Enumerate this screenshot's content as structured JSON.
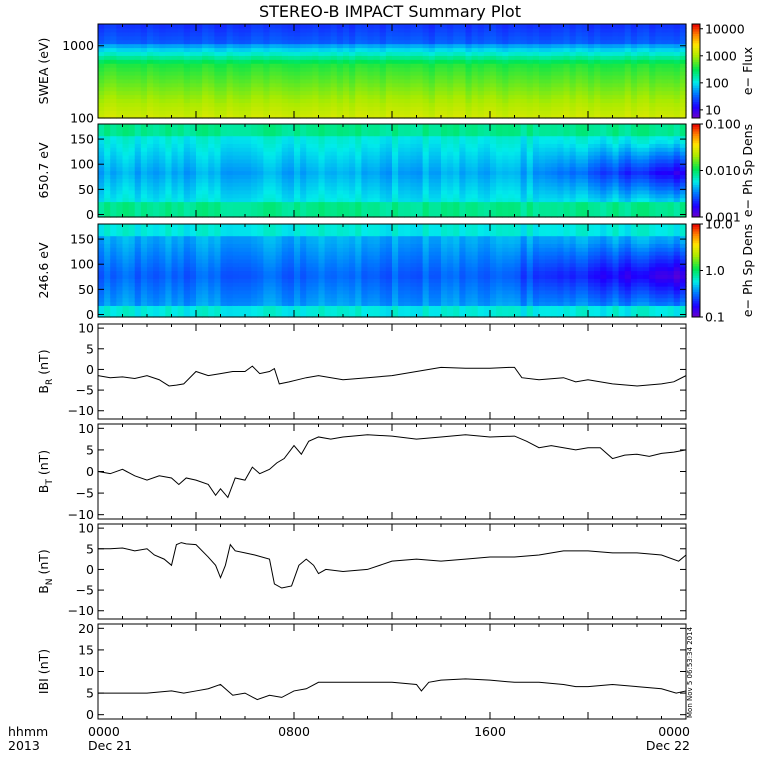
{
  "title": "STEREO-B IMPACT Summary Plot",
  "x_axis": {
    "corner_labels": [
      "hhmm",
      "2013"
    ],
    "ticks": [
      {
        "t": 0,
        "lines": [
          "0000",
          "Dec 21"
        ]
      },
      {
        "t": 8,
        "lines": [
          "0800"
        ]
      },
      {
        "t": 16,
        "lines": [
          "1600"
        ]
      },
      {
        "t": 24,
        "lines": [
          "0000",
          "Dec 22"
        ]
      }
    ],
    "range_hours": [
      0,
      24
    ]
  },
  "timestamp": "Mon Nov  5 06:53:34 2014",
  "chart_data": [
    {
      "type": "heatmap",
      "id": "swea",
      "ylabel": "SWEA (eV)",
      "ylog": true,
      "ylim": [
        100,
        2000
      ],
      "yticks": [
        {
          "v": 100,
          "label": "100"
        },
        {
          "v": 1000,
          "label": "1000"
        }
      ],
      "colorbar": {
        "label": "e− Flux",
        "log": true,
        "range": [
          5,
          15000
        ],
        "ticks": [
          {
            "v": 10,
            "label": "10"
          },
          {
            "v": 100,
            "label": "100"
          },
          {
            "v": 1000,
            "label": "1000"
          },
          {
            "v": 10000,
            "label": "10000"
          }
        ]
      },
      "description_profile": "Low flux (blue/purple) above ~1000 eV, green ~300-800 eV, yellow-green at lowest energies; nearly constant in time"
    },
    {
      "type": "heatmap",
      "id": "pad650",
      "ylabel": "650.7 eV",
      "ylim": [
        -5,
        180
      ],
      "yticks": [
        {
          "v": 0,
          "label": "0"
        },
        {
          "v": 50,
          "label": "50"
        },
        {
          "v": 100,
          "label": "100"
        },
        {
          "v": 150,
          "label": "150"
        }
      ],
      "colorbar": {
        "label": "e− Ph Sp Dens",
        "log": true,
        "range": [
          0.001,
          0.1
        ],
        "ticks": [
          {
            "v": 0.001,
            "label": "0.001"
          },
          {
            "v": 0.01,
            "label": "0.010"
          },
          {
            "v": 0.1,
            "label": "0.100"
          }
        ]
      }
    },
    {
      "type": "heatmap",
      "id": "pad246",
      "ylabel": "246.6 eV",
      "ylim": [
        -5,
        180
      ],
      "yticks": [
        {
          "v": 0,
          "label": "0"
        },
        {
          "v": 50,
          "label": "50"
        },
        {
          "v": 100,
          "label": "100"
        },
        {
          "v": 150,
          "label": "150"
        }
      ],
      "colorbar": {
        "label": "e− Ph Sp Dens",
        "log": true,
        "range": [
          0.1,
          10
        ],
        "ticks": [
          {
            "v": 0.1,
            "label": "0.1"
          },
          {
            "v": 1,
            "label": "1.0"
          },
          {
            "v": 10,
            "label": "10.0"
          }
        ]
      }
    },
    {
      "type": "line",
      "id": "br",
      "ylabel_main": "B",
      "ylabel_sub": "R",
      "ylabel_unit": " (nT)",
      "ylim": [
        -12,
        11
      ],
      "yticks": [
        {
          "v": -10,
          "label": "−10"
        },
        {
          "v": -5,
          "label": "−5"
        },
        {
          "v": 0,
          "label": "0"
        },
        {
          "v": 5,
          "label": "5"
        },
        {
          "v": 10,
          "label": "10"
        }
      ],
      "x": [
        0,
        0.5,
        1,
        1.5,
        2,
        2.5,
        2.9,
        3.2,
        3.5,
        4,
        4.5,
        5,
        5.5,
        6,
        6.3,
        6.6,
        7,
        7.2,
        7.4,
        7.8,
        8.5,
        9,
        10,
        11,
        12,
        13,
        14,
        15,
        16,
        16.8,
        17,
        17.3,
        18,
        19,
        19.5,
        20,
        21,
        22,
        23,
        23.5,
        24
      ],
      "values": [
        -1.5,
        -2,
        -1.8,
        -2.2,
        -1.5,
        -2.5,
        -4,
        -3.8,
        -3.5,
        -0.5,
        -1.5,
        -1,
        -0.5,
        -0.5,
        0.8,
        -1,
        -0.5,
        0.2,
        -3.5,
        -3,
        -2,
        -1.5,
        -2.5,
        -2,
        -1.5,
        -0.5,
        0.5,
        0.3,
        0.3,
        0.5,
        0.5,
        -2,
        -2.5,
        -2,
        -3,
        -2.5,
        -3.5,
        -4,
        -3.5,
        -3,
        -1.5
      ]
    },
    {
      "type": "line",
      "id": "bt",
      "ylabel_main": "B",
      "ylabel_sub": "T",
      "ylabel_unit": " (nT)",
      "ylim": [
        -11,
        11
      ],
      "yticks": [
        {
          "v": -10,
          "label": "−10"
        },
        {
          "v": -5,
          "label": "−5"
        },
        {
          "v": 0,
          "label": "0"
        },
        {
          "v": 5,
          "label": "5"
        },
        {
          "v": 10,
          "label": "10"
        }
      ],
      "x": [
        0,
        0.5,
        1,
        1.5,
        2,
        2.5,
        3,
        3.3,
        3.6,
        4,
        4.5,
        4.8,
        5,
        5.3,
        5.6,
        6,
        6.3,
        6.6,
        7,
        7.3,
        7.6,
        8,
        8.3,
        8.6,
        9,
        9.5,
        10,
        11,
        12,
        13,
        14,
        15,
        16,
        17,
        17.5,
        18,
        18.5,
        19,
        19.5,
        20,
        20.5,
        21,
        21.5,
        22,
        22.5,
        23,
        23.5,
        24
      ],
      "values": [
        0,
        -0.5,
        0.5,
        -1,
        -2,
        -1,
        -1.5,
        -3,
        -1.5,
        -2,
        -3,
        -5.5,
        -4,
        -6,
        -1.5,
        -2,
        1,
        -0.5,
        0.5,
        2,
        3,
        6,
        4,
        7,
        8,
        7.5,
        8,
        8.5,
        8.2,
        7.5,
        8,
        8.5,
        8,
        8.2,
        7,
        5.5,
        6,
        5.5,
        5,
        5.5,
        5.5,
        3,
        3.8,
        4,
        3.5,
        4.2,
        4.5,
        5
      ]
    },
    {
      "type": "line",
      "id": "bn",
      "ylabel_main": "B",
      "ylabel_sub": "N",
      "ylabel_unit": " (nT)",
      "ylim": [
        -12,
        11
      ],
      "yticks": [
        {
          "v": -10,
          "label": "−10"
        },
        {
          "v": -5,
          "label": "−5"
        },
        {
          "v": 0,
          "label": "0"
        },
        {
          "v": 5,
          "label": "5"
        },
        {
          "v": 10,
          "label": "10"
        }
      ],
      "x": [
        0,
        0.5,
        1,
        1.5,
        2,
        2.3,
        2.7,
        3,
        3.2,
        3.4,
        3.6,
        4,
        4.5,
        4.8,
        5,
        5.2,
        5.4,
        5.6,
        6,
        6.4,
        7,
        7.2,
        7.5,
        7.9,
        8.2,
        8.5,
        8.8,
        9,
        9.3,
        10,
        11,
        12,
        13,
        14,
        15,
        16,
        17,
        18,
        19,
        20,
        21,
        22,
        23,
        23.7,
        24
      ],
      "values": [
        5,
        5,
        5.2,
        4.5,
        5,
        3.5,
        2.5,
        1,
        6,
        6.5,
        6.2,
        6,
        3,
        1,
        -2,
        1,
        6,
        4.5,
        4,
        3.5,
        2.5,
        -3.5,
        -4.5,
        -4,
        1,
        2.5,
        1,
        -1,
        0,
        -0.5,
        0,
        2,
        2.5,
        2,
        2.5,
        3,
        3,
        3.5,
        4.5,
        4.5,
        4,
        4,
        3.5,
        2,
        3.5
      ]
    },
    {
      "type": "line",
      "id": "bmag",
      "ylabel_main": "IBI (nT)",
      "ylim": [
        -1,
        21
      ],
      "yticks": [
        {
          "v": 0,
          "label": "0"
        },
        {
          "v": 5,
          "label": "5"
        },
        {
          "v": 10,
          "label": "10"
        },
        {
          "v": 15,
          "label": "15"
        },
        {
          "v": 20,
          "label": "20"
        }
      ],
      "x": [
        0,
        1,
        2,
        3,
        3.5,
        4,
        4.5,
        5,
        5.5,
        6,
        6.5,
        7,
        7.5,
        8,
        8.5,
        9,
        10,
        11,
        12,
        13,
        13.2,
        13.5,
        14,
        15,
        16,
        17,
        18,
        19,
        19.5,
        20,
        21,
        22,
        23,
        23.6,
        24
      ],
      "values": [
        5,
        5,
        5,
        5.5,
        5,
        5.5,
        6,
        7,
        4.5,
        5,
        3.5,
        4.5,
        4,
        5.5,
        6,
        7.5,
        7.5,
        7.5,
        7.5,
        7,
        5.5,
        7.5,
        8,
        8.3,
        8,
        7.5,
        7.5,
        7,
        6.5,
        6.5,
        7,
        6.5,
        6,
        5,
        5.5
      ]
    }
  ]
}
